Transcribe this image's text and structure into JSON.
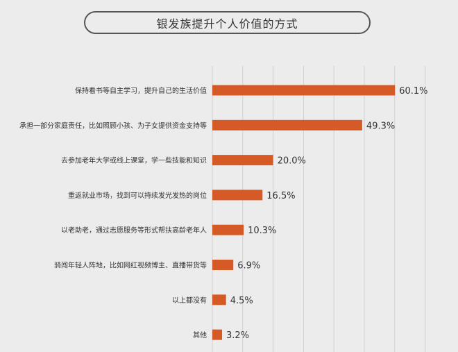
{
  "chart_data": {
    "type": "bar",
    "orientation": "horizontal",
    "title": "银发族提升个人价值的方式",
    "categories": [
      "保持看书等自主学习，提升自己的生活价值",
      "承担一部分家庭责任，比如照顾小孩、为子女提供资金支持等",
      "去参加老年大学或线上课堂，学一些技能和知识",
      "重返就业市场，找到可以持续发光发热的岗位",
      "以老助老，通过志愿服务等形式帮扶高龄老年人",
      "骑闯年轻人阵地，比如网红视频博主、直播带货等",
      "以上都没有",
      "其他"
    ],
    "values": [
      60.1,
      49.3,
      20.0,
      16.5,
      10.3,
      6.9,
      4.5,
      3.2
    ],
    "value_labels": [
      "60.1%",
      "49.3%",
      "20.0%",
      "16.5%",
      "10.3%",
      "6.9%",
      "4.5%",
      "3.2%"
    ],
    "unit": "%",
    "xlim": [
      0,
      70
    ],
    "grid": true,
    "bar_color": "#d65a26",
    "grid_color": "#d0d0d0"
  }
}
